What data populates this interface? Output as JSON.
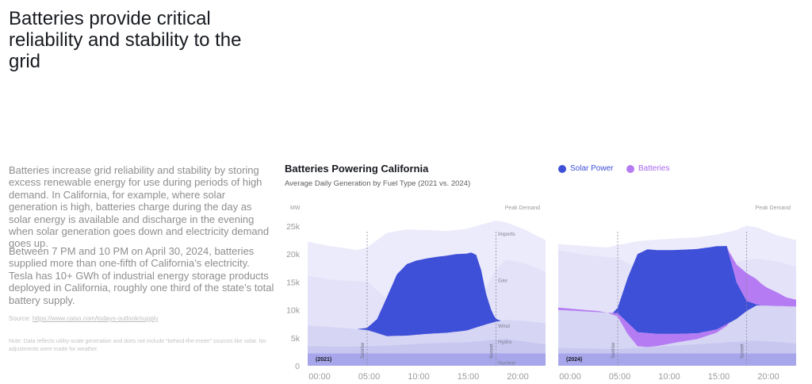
{
  "headline": "Batteries provide critical reliability and stability to the grid",
  "paragraphs": [
    "Batteries increase grid reliability and stability by storing excess renewable energy for use during periods of high demand. In California, for example, where solar generation is high, batteries charge during the day as solar energy is available and discharge in the evening when solar generation goes down and electricity demand goes up.",
    "Between 7 PM and 10 PM on April 30, 2024, batteries supplied more than one-fifth of California’s electricity. Tesla has 10+ GWh of industrial energy storage products deployed in California, roughly one third of the state’s total battery supply."
  ],
  "source": {
    "label": "Source:",
    "link": "https://www.caiso.com/todays-outlook/supply"
  },
  "note": "Note: Data reflects utility-scale generation and does not include “behind-the-meter” sources like solar. No adjustments were made for weather.",
  "colors": {
    "solar": "#3e4fd8",
    "batteries": "#b57bf2",
    "background_layers": "#dcdcf6"
  },
  "chart_data": {
    "type": "area",
    "title": "Batteries Powering California",
    "subtitle": "Average Daily Generation by Fuel Type (2021 vs. 2024)",
    "legend": [
      {
        "name": "Solar Power",
        "color": "#3e4fd8"
      },
      {
        "name": "Batteries",
        "color": "#b57bf2"
      }
    ],
    "y_unit": "MW",
    "y_ticks": [
      "0",
      "5k",
      "10k",
      "15k",
      "20k",
      "25k"
    ],
    "ylim": [
      0,
      25000
    ],
    "x_ticks": [
      "00:00",
      "05:00",
      "10:00",
      "15:00",
      "20:00"
    ],
    "xlim": [
      0,
      24
    ],
    "layer_labels": [
      "Imports",
      "Gas",
      "Wind",
      "Hydro",
      "Nuclear"
    ],
    "annotations": {
      "peak": "Peak Demand",
      "sunrise": "Sunrise",
      "sunset": "Sunset"
    },
    "panels": [
      {
        "year": "(2021)",
        "sunrise": 6,
        "sunset": 19,
        "series": {
          "Nuclear": [
            [
              0,
              2200
            ],
            [
              24,
              2200
            ]
          ],
          "Hydro": [
            [
              0,
              3500
            ],
            [
              4,
              3400
            ],
            [
              8,
              3600
            ],
            [
              12,
              4000
            ],
            [
              16,
              4200
            ],
            [
              20,
              4800
            ],
            [
              24,
              3800
            ]
          ],
          "Wind": [
            [
              0,
              7200
            ],
            [
              2,
              7000
            ],
            [
              4,
              6700
            ],
            [
              6,
              6400
            ],
            [
              8,
              5300
            ],
            [
              10,
              5400
            ],
            [
              12,
              5700
            ],
            [
              14,
              5900
            ],
            [
              16,
              6300
            ],
            [
              18,
              7400
            ],
            [
              19,
              7900
            ],
            [
              20,
              8200
            ],
            [
              22,
              8000
            ],
            [
              24,
              7600
            ]
          ],
          "Gas": [
            [
              0,
              16100
            ],
            [
              2,
              15500
            ],
            [
              4,
              15200
            ],
            [
              6,
              15100
            ],
            [
              7,
              13500
            ],
            [
              9,
              10500
            ],
            [
              10,
              9500
            ],
            [
              13,
              9000
            ],
            [
              16,
              9500
            ],
            [
              17,
              11000
            ],
            [
              18,
              14000
            ],
            [
              19,
              17200
            ],
            [
              20,
              19000
            ],
            [
              22,
              18300
            ],
            [
              24,
              16800
            ]
          ],
          "Total": [
            [
              0,
              22200
            ],
            [
              2,
              21500
            ],
            [
              4,
              21000
            ],
            [
              5,
              20700
            ],
            [
              6,
              21200
            ],
            [
              7,
              22500
            ],
            [
              8,
              23800
            ],
            [
              10,
              24400
            ],
            [
              12,
              24300
            ],
            [
              14,
              24100
            ],
            [
              16,
              24500
            ],
            [
              18,
              25500
            ],
            [
              19,
              26000
            ],
            [
              20,
              25700
            ],
            [
              22,
              24300
            ],
            [
              24,
              22500
            ]
          ],
          "Solar": [
            [
              0,
              0
            ],
            [
              5,
              0
            ],
            [
              6,
              400
            ],
            [
              7,
              2500
            ],
            [
              8,
              7000
            ],
            [
              9,
              11000
            ],
            [
              10,
              12800
            ],
            [
              11,
              13300
            ],
            [
              13,
              13700
            ],
            [
              15,
              13900
            ],
            [
              16.5,
              13700
            ],
            [
              17,
              13000
            ],
            [
              17.5,
              10000
            ],
            [
              18,
              5500
            ],
            [
              18.6,
              1800
            ],
            [
              19,
              500
            ],
            [
              19.5,
              0
            ],
            [
              24,
              0
            ]
          ],
          "Batteries": [
            [
              0,
              0
            ],
            [
              24,
              0
            ]
          ]
        }
      },
      {
        "year": "(2024)",
        "sunrise": 6,
        "sunset": 19,
        "series": {
          "Nuclear": [
            [
              0,
              2200
            ],
            [
              24,
              2200
            ]
          ],
          "Hydro": [
            [
              0,
              3200
            ],
            [
              6,
              3000
            ],
            [
              12,
              3600
            ],
            [
              18,
              4300
            ],
            [
              20,
              4500
            ],
            [
              24,
              4000
            ]
          ],
          "Wind": [
            [
              0,
              10000
            ],
            [
              2,
              9800
            ],
            [
              4,
              9600
            ],
            [
              6,
              9400
            ],
            [
              8,
              6000
            ],
            [
              10,
              5700
            ],
            [
              12,
              5700
            ],
            [
              14,
              5800
            ],
            [
              16,
              6500
            ],
            [
              18,
              8400
            ],
            [
              19,
              9800
            ],
            [
              20,
              10800
            ],
            [
              22,
              10700
            ],
            [
              24,
              10600
            ]
          ],
          "Gas": [
            [
              0,
              20700
            ],
            [
              3,
              19800
            ],
            [
              6,
              19300
            ],
            [
              9,
              16500
            ],
            [
              12,
              16000
            ],
            [
              15,
              16500
            ],
            [
              18,
              18600
            ],
            [
              20,
              19200
            ],
            [
              22,
              18700
            ],
            [
              24,
              17800
            ]
          ],
          "Total": [
            [
              0,
              21800
            ],
            [
              3,
              21400
            ],
            [
              5,
              21200
            ],
            [
              6,
              21600
            ],
            [
              8,
              22300
            ],
            [
              10,
              22600
            ],
            [
              12,
              22800
            ],
            [
              14,
              23000
            ],
            [
              16,
              23500
            ],
            [
              18,
              24300
            ],
            [
              19,
              25100
            ],
            [
              20,
              24800
            ],
            [
              22,
              23400
            ],
            [
              24,
              22500
            ]
          ],
          "Solar": [
            [
              0,
              0
            ],
            [
              5.5,
              0
            ],
            [
              6,
              1000
            ],
            [
              7,
              8000
            ],
            [
              8,
              14000
            ],
            [
              9,
              15000
            ],
            [
              11,
              15000
            ],
            [
              14,
              15100
            ],
            [
              16,
              14900
            ],
            [
              17,
              14000
            ],
            [
              18,
              6500
            ],
            [
              19,
              1800
            ],
            [
              20,
              200
            ],
            [
              20.5,
              0
            ],
            [
              24,
              0
            ]
          ],
          "Batteries": [
            [
              0,
              400
            ],
            [
              4,
              200
            ],
            [
              5,
              0
            ],
            [
              6,
              -600
            ],
            [
              7,
              -2000
            ],
            [
              8,
              -2500
            ],
            [
              9,
              -2500
            ],
            [
              12,
              -1500
            ],
            [
              15,
              -800
            ],
            [
              17,
              -300
            ],
            [
              18,
              3200
            ],
            [
              19,
              5000
            ],
            [
              20,
              4500
            ],
            [
              21,
              3300
            ],
            [
              22,
              2500
            ],
            [
              23,
              1600
            ],
            [
              24,
              1200
            ]
          ]
        }
      }
    ]
  }
}
